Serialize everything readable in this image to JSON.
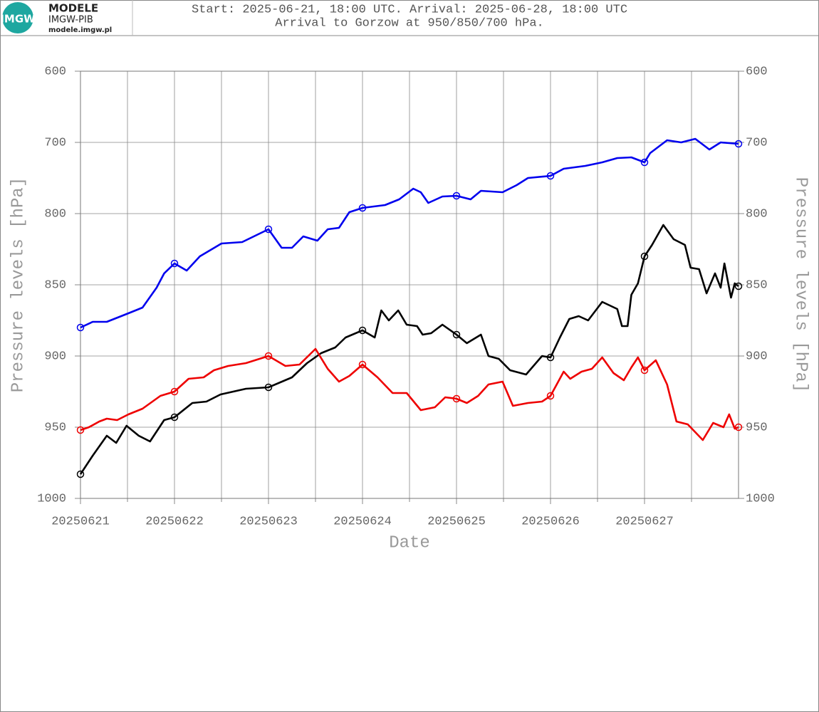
{
  "header": {
    "logo_text": "IMGW",
    "brand": "MODELE",
    "org": "IMGW-PIB",
    "url": "modele.imgw.pl"
  },
  "chart_data": {
    "type": "line",
    "title": "Start: 2025-06-21, 18:00 UTC. Arrival: 2025-06-28, 18:00 UTC",
    "subtitle": "Arrival to Gorzow at 950/850/700 hPa.",
    "x_label": "Date",
    "y_label": "Pressure levels [hPa]",
    "y2_label": "Pressure levels [hPa]",
    "xlim": [
      0,
      7
    ],
    "xticks": [
      {
        "value": 0,
        "label": "20250621"
      },
      {
        "value": 1,
        "label": "20250622"
      },
      {
        "value": 2,
        "label": "20250623"
      },
      {
        "value": 3,
        "label": "20250624"
      },
      {
        "value": 4,
        "label": "20250625"
      },
      {
        "value": 5,
        "label": "20250626"
      },
      {
        "value": 6,
        "label": "20250627"
      }
    ],
    "xminor": [
      0.5,
      1.5,
      2.5,
      3.5,
      4.5,
      5.5,
      6.5
    ],
    "ylim": [
      600,
      1000
    ],
    "yticks": [
      600,
      700,
      800,
      850,
      900,
      950,
      1000
    ],
    "y_inverted": true,
    "y_scale": "even-ticks",
    "grid": true,
    "series": [
      {
        "color": "#0000ee",
        "x": [
          0,
          0.13,
          0.28,
          0.51,
          0.66,
          0.81,
          0.89,
          1,
          1.13,
          1.27,
          1.5,
          1.72,
          2,
          2.14,
          2.25,
          2.37,
          2.52,
          2.63,
          2.75,
          2.86,
          3,
          3.24,
          3.39,
          3.54,
          3.62,
          3.7,
          3.85,
          4,
          4.15,
          4.26,
          4.49,
          4.64,
          4.76,
          5,
          5.14,
          5.37,
          5.55,
          5.71,
          5.86,
          6,
          6.06,
          6.24,
          6.39,
          6.54,
          6.69,
          6.81,
          7
        ],
        "values": [
          880,
          876,
          876,
          870,
          866,
          852,
          842,
          835,
          840,
          830,
          821,
          820,
          811,
          824,
          824,
          816,
          819,
          811,
          810,
          798,
          792,
          788,
          780,
          765,
          770,
          785,
          776,
          775,
          780,
          768,
          770,
          760,
          750,
          747,
          737,
          733,
          728,
          722,
          721,
          728,
          715,
          697,
          700,
          695,
          710,
          700,
          702
        ]
      },
      {
        "color": "#000000",
        "x": [
          0,
          0.13,
          0.28,
          0.38,
          0.49,
          0.62,
          0.74,
          0.89,
          1,
          1.19,
          1.34,
          1.49,
          1.76,
          2,
          2.25,
          2.41,
          2.56,
          2.71,
          2.82,
          3,
          3.13,
          3.2,
          3.28,
          3.38,
          3.47,
          3.58,
          3.64,
          3.73,
          3.85,
          4,
          4.11,
          4.26,
          4.34,
          4.45,
          4.57,
          4.74,
          4.91,
          5,
          5.1,
          5.2,
          5.3,
          5.4,
          5.55,
          5.71,
          5.76,
          5.82,
          5.86,
          5.93,
          6,
          6.08,
          6.2,
          6.31,
          6.43,
          6.49,
          6.58,
          6.66,
          6.75,
          6.81,
          6.85,
          6.92,
          6.96,
          7
        ],
        "values": [
          983,
          970,
          956,
          961,
          949,
          956,
          960,
          945,
          943,
          933,
          932,
          927,
          923,
          922,
          915,
          905,
          898,
          894,
          887,
          882,
          887,
          868,
          875,
          868,
          878,
          879,
          885,
          884,
          878,
          885,
          891,
          885,
          900,
          902,
          910,
          913,
          900,
          901,
          887,
          874,
          872,
          875,
          862,
          867,
          879,
          879,
          857,
          849,
          830,
          822,
          808,
          818,
          822,
          838,
          839,
          856,
          842,
          852,
          835,
          859,
          849,
          851
        ]
      },
      {
        "color": "#ee0000",
        "x": [
          0,
          0.09,
          0.2,
          0.28,
          0.39,
          0.51,
          0.66,
          0.85,
          1,
          1.15,
          1.31,
          1.42,
          1.57,
          1.76,
          2,
          2.18,
          2.33,
          2.5,
          2.63,
          2.75,
          2.86,
          3,
          3.16,
          3.32,
          3.47,
          3.62,
          3.77,
          3.88,
          4,
          4.11,
          4.23,
          4.34,
          4.49,
          4.6,
          4.76,
          4.91,
          5,
          5.14,
          5.21,
          5.33,
          5.44,
          5.55,
          5.67,
          5.78,
          5.86,
          5.93,
          6,
          6.12,
          6.24,
          6.34,
          6.46,
          6.62,
          6.73,
          6.84,
          6.9,
          6.96,
          7
        ],
        "values": [
          952,
          950,
          946,
          944,
          945,
          941,
          937,
          928,
          925,
          916,
          915,
          910,
          907,
          905,
          900,
          907,
          906,
          895,
          909,
          918,
          914,
          906,
          915,
          926,
          926,
          938,
          936,
          929,
          930,
          933,
          928,
          920,
          918,
          935,
          933,
          932,
          928,
          911,
          916,
          911,
          909,
          901,
          912,
          917,
          908,
          901,
          910,
          903,
          920,
          946,
          948,
          959,
          947,
          950,
          941,
          951,
          950
        ]
      }
    ]
  }
}
